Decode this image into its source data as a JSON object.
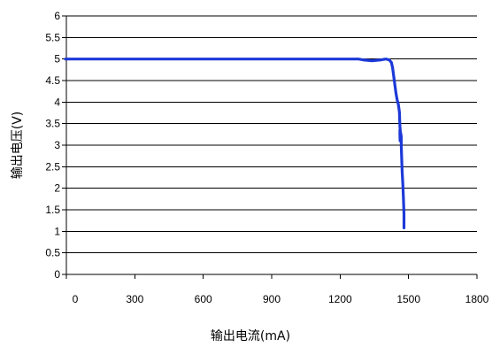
{
  "chart_data": {
    "type": "line",
    "title": "",
    "xlabel": "输出电流(mA)",
    "ylabel": "输出电压(V)",
    "xlim": [
      0,
      1800
    ],
    "ylim": [
      0,
      6
    ],
    "x_ticks": [
      "0",
      "300",
      "600",
      "900",
      "1200",
      "1500",
      "1800"
    ],
    "y_ticks": [
      "0",
      "0.5",
      "1",
      "1.5",
      "2",
      "2.5",
      "3",
      "3.5",
      "4",
      "4.5",
      "5",
      "5.5",
      "6"
    ],
    "grid": "horizontal",
    "legend": "none",
    "line_color": "#1c39d8",
    "series": [
      {
        "x": [
          -4,
          300,
          600,
          900,
          1200,
          1280,
          1300,
          1340,
          1380,
          1400,
          1415,
          1425,
          1430,
          1435,
          1440,
          1445,
          1450,
          1455,
          1458,
          1460,
          1461,
          1462,
          1464,
          1464,
          1463,
          1462,
          1462,
          1465,
          1468,
          1468,
          1470,
          1472,
          1475,
          1476,
          1478,
          1480,
          1480
        ],
        "y": [
          5.0,
          5.0,
          5.0,
          5.0,
          5.0,
          5.0,
          4.98,
          4.96,
          4.98,
          5.0,
          4.98,
          4.92,
          4.8,
          4.6,
          4.4,
          4.2,
          4.05,
          3.95,
          3.85,
          3.75,
          3.6,
          3.45,
          3.3,
          3.15,
          3.1,
          3.25,
          3.35,
          3.3,
          3.2,
          3.0,
          2.7,
          2.4,
          2.1,
          1.95,
          1.7,
          1.4,
          1.08
        ]
      }
    ]
  }
}
